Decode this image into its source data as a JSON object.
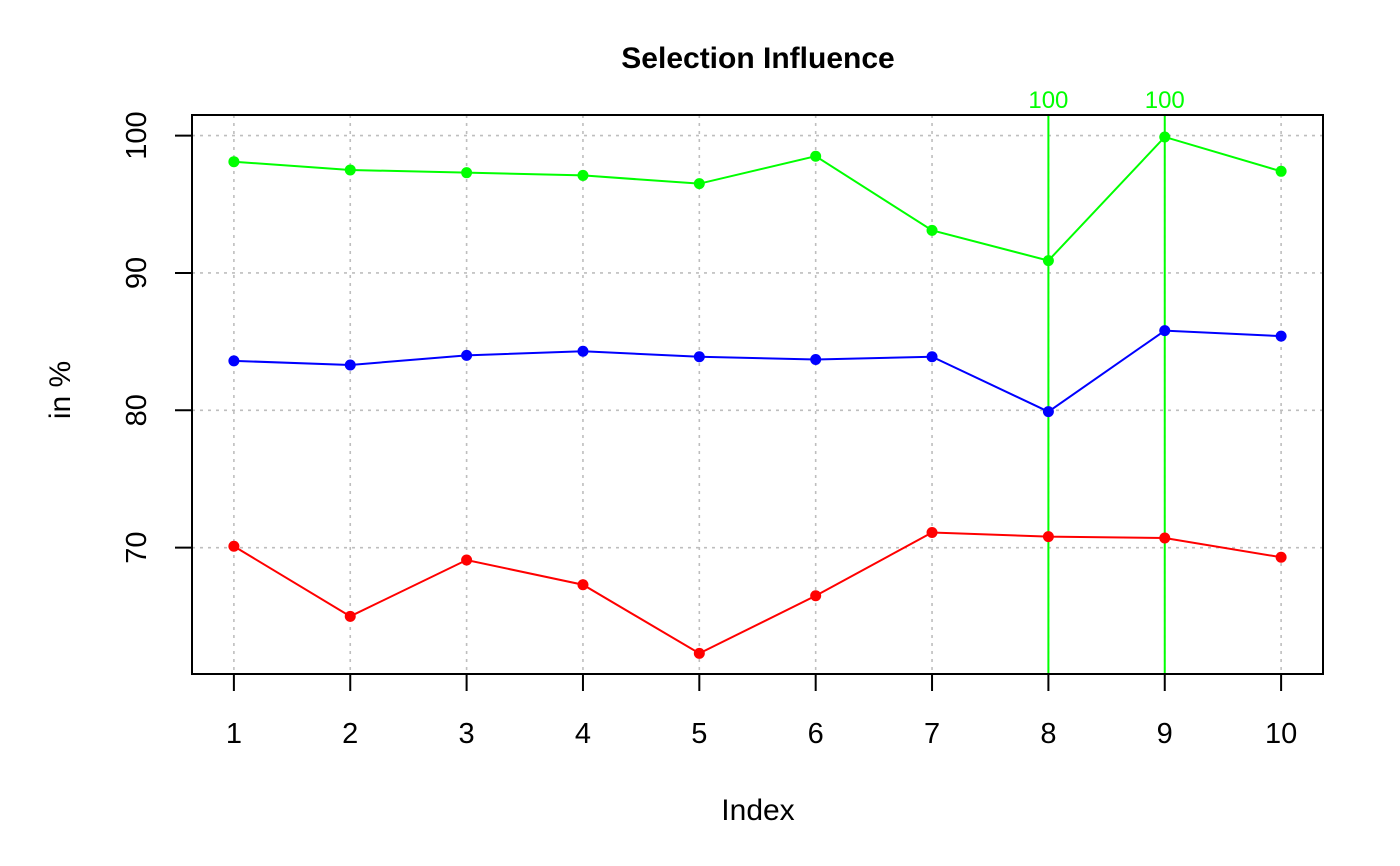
{
  "chart_data": {
    "type": "line",
    "title": "Selection Influence",
    "xlabel": "Index",
    "ylabel": "in %",
    "x": [
      1,
      2,
      3,
      4,
      5,
      6,
      7,
      8,
      9,
      10
    ],
    "xlim": [
      0.64,
      10.36
    ],
    "ylim": [
      60.8,
      101.5
    ],
    "x_ticks": [
      "1",
      "2",
      "3",
      "4",
      "5",
      "6",
      "7",
      "8",
      "9",
      "10"
    ],
    "y_ticks": [
      "70",
      "80",
      "90",
      "100"
    ],
    "grid": true,
    "series": [
      {
        "color": "#00ff00",
        "values": [
          98.1,
          97.5,
          97.3,
          97.1,
          96.5,
          98.5,
          93.1,
          90.9,
          99.9,
          97.4
        ]
      },
      {
        "color": "#0000ff",
        "values": [
          83.6,
          83.3,
          84.0,
          84.3,
          83.9,
          83.7,
          83.9,
          79.9,
          85.8,
          85.4
        ]
      },
      {
        "color": "#ff0000",
        "values": [
          70.1,
          65.0,
          69.1,
          67.3,
          62.3,
          66.5,
          71.1,
          70.8,
          70.7,
          69.3
        ]
      }
    ],
    "annotations": [
      {
        "x": 8,
        "label": "100",
        "color": "#00ff00"
      },
      {
        "x": 9,
        "label": "100",
        "color": "#00ff00"
      }
    ]
  }
}
